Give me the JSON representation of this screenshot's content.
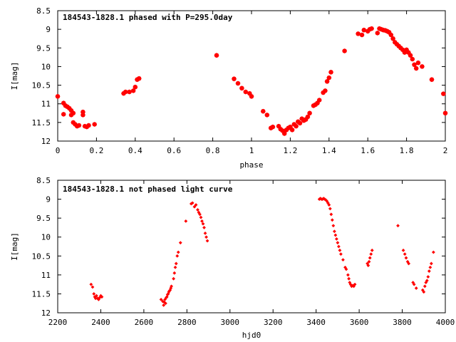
{
  "marker_color": "#ff0000",
  "chart_data": [
    {
      "type": "scatter",
      "title": "184543-1828.1 phased with P=295.0day",
      "xlabel": "phase",
      "ylabel": "I[mag]",
      "xlim": [
        0,
        2
      ],
      "ylim": [
        12,
        8.5
      ],
      "y_inverted": true,
      "xticks": [
        0,
        0.2,
        0.4,
        0.6,
        0.8,
        1,
        1.2,
        1.4,
        1.6,
        1.8,
        2
      ],
      "xtick_labels": [
        "0",
        "0.2",
        "0.4",
        "0.6",
        "0.8",
        "1",
        "1.2",
        "1.4",
        "1.6",
        "1.8",
        "2"
      ],
      "yticks": [
        8.5,
        9,
        9.5,
        10,
        10.5,
        11,
        11.5,
        12
      ],
      "ytick_labels": [
        "8.5",
        "9",
        "9.5",
        "10",
        "10.5",
        "11",
        "11.5",
        "12"
      ],
      "grid": false,
      "legend": "none",
      "points": [
        [
          0.0,
          10.8
        ],
        [
          0.03,
          10.98
        ],
        [
          0.04,
          11.05
        ],
        [
          0.05,
          11.08
        ],
        [
          0.06,
          11.12
        ],
        [
          0.07,
          11.18
        ],
        [
          0.08,
          11.25
        ],
        [
          0.03,
          11.28
        ],
        [
          0.07,
          11.3
        ],
        [
          0.08,
          11.5
        ],
        [
          0.09,
          11.55
        ],
        [
          0.1,
          11.6
        ],
        [
          0.11,
          11.58
        ],
        [
          0.13,
          11.22
        ],
        [
          0.13,
          11.3
        ],
        [
          0.14,
          11.6
        ],
        [
          0.15,
          11.62
        ],
        [
          0.16,
          11.58
        ],
        [
          0.19,
          11.55
        ],
        [
          0.34,
          10.72
        ],
        [
          0.35,
          10.68
        ],
        [
          0.37,
          10.68
        ],
        [
          0.39,
          10.65
        ],
        [
          0.4,
          10.55
        ],
        [
          0.41,
          10.35
        ],
        [
          0.42,
          10.32
        ],
        [
          0.82,
          9.7
        ],
        [
          0.91,
          10.33
        ],
        [
          0.93,
          10.45
        ],
        [
          0.95,
          10.58
        ],
        [
          0.97,
          10.68
        ],
        [
          0.99,
          10.72
        ],
        [
          1.0,
          10.8
        ],
        [
          1.06,
          11.2
        ],
        [
          1.08,
          11.3
        ],
        [
          1.1,
          11.65
        ],
        [
          1.11,
          11.62
        ],
        [
          1.14,
          11.6
        ],
        [
          1.15,
          11.68
        ],
        [
          1.16,
          11.72
        ],
        [
          1.17,
          11.75
        ],
        [
          1.17,
          11.8
        ],
        [
          1.18,
          11.7
        ],
        [
          1.19,
          11.65
        ],
        [
          1.2,
          11.62
        ],
        [
          1.21,
          11.7
        ],
        [
          1.22,
          11.55
        ],
        [
          1.23,
          11.6
        ],
        [
          1.24,
          11.48
        ],
        [
          1.25,
          11.52
        ],
        [
          1.26,
          11.4
        ],
        [
          1.27,
          11.45
        ],
        [
          1.28,
          11.42
        ],
        [
          1.29,
          11.35
        ],
        [
          1.3,
          11.25
        ],
        [
          1.32,
          11.05
        ],
        [
          1.33,
          11.02
        ],
        [
          1.34,
          10.98
        ],
        [
          1.35,
          10.9
        ],
        [
          1.37,
          10.7
        ],
        [
          1.38,
          10.65
        ],
        [
          1.39,
          10.4
        ],
        [
          1.4,
          10.3
        ],
        [
          1.41,
          10.15
        ],
        [
          1.48,
          9.58
        ],
        [
          1.55,
          9.12
        ],
        [
          1.57,
          9.15
        ],
        [
          1.58,
          9.02
        ],
        [
          1.6,
          9.05
        ],
        [
          1.61,
          9.0
        ],
        [
          1.62,
          8.98
        ],
        [
          1.65,
          9.1
        ],
        [
          1.66,
          8.98
        ],
        [
          1.67,
          9.0
        ],
        [
          1.68,
          9.02
        ],
        [
          1.69,
          9.03
        ],
        [
          1.7,
          9.05
        ],
        [
          1.71,
          9.08
        ],
        [
          1.72,
          9.15
        ],
        [
          1.73,
          9.25
        ],
        [
          1.74,
          9.35
        ],
        [
          1.75,
          9.4
        ],
        [
          1.76,
          9.45
        ],
        [
          1.77,
          9.5
        ],
        [
          1.78,
          9.55
        ],
        [
          1.79,
          9.62
        ],
        [
          1.8,
          9.55
        ],
        [
          1.81,
          9.62
        ],
        [
          1.82,
          9.7
        ],
        [
          1.83,
          9.8
        ],
        [
          1.84,
          9.95
        ],
        [
          1.85,
          10.05
        ],
        [
          1.86,
          9.9
        ],
        [
          1.88,
          10.0
        ],
        [
          1.93,
          10.35
        ],
        [
          1.99,
          10.73
        ],
        [
          2.0,
          11.25
        ]
      ]
    },
    {
      "type": "scatter",
      "title": "184543-1828.1 not phased light curve",
      "xlabel": "hjd0",
      "ylabel": "I[mag]",
      "xlim": [
        2200,
        4000
      ],
      "ylim": [
        12,
        8.5
      ],
      "y_inverted": true,
      "xticks": [
        2200,
        2400,
        2600,
        2800,
        3000,
        3200,
        3400,
        3600,
        3800,
        4000
      ],
      "xtick_labels": [
        "2200",
        "2400",
        "2600",
        "2800",
        "3000",
        "3200",
        "3400",
        "3600",
        "3800",
        "4000"
      ],
      "yticks": [
        8.5,
        9,
        9.5,
        10,
        10.5,
        11,
        11.5,
        12
      ],
      "ytick_labels": [
        "8.5",
        "9",
        "9.5",
        "10",
        "10.5",
        "11",
        "11.5",
        "12"
      ],
      "grid": false,
      "legend": "none",
      "points": [
        [
          2355,
          11.25
        ],
        [
          2362,
          11.32
        ],
        [
          2368,
          11.5
        ],
        [
          2372,
          11.58
        ],
        [
          2376,
          11.62
        ],
        [
          2380,
          11.55
        ],
        [
          2385,
          11.62
        ],
        [
          2390,
          11.65
        ],
        [
          2395,
          11.6
        ],
        [
          2400,
          11.55
        ],
        [
          2405,
          11.58
        ],
        [
          2680,
          11.65
        ],
        [
          2688,
          11.7
        ],
        [
          2692,
          11.8
        ],
        [
          2695,
          11.72
        ],
        [
          2698,
          11.65
        ],
        [
          2701,
          11.75
        ],
        [
          2704,
          11.6
        ],
        [
          2707,
          11.58
        ],
        [
          2710,
          11.52
        ],
        [
          2713,
          11.5
        ],
        [
          2716,
          11.45
        ],
        [
          2719,
          11.42
        ],
        [
          2722,
          11.4
        ],
        [
          2725,
          11.35
        ],
        [
          2728,
          11.3
        ],
        [
          2738,
          11.1
        ],
        [
          2742,
          10.95
        ],
        [
          2746,
          10.8
        ],
        [
          2750,
          10.7
        ],
        [
          2755,
          10.5
        ],
        [
          2760,
          10.4
        ],
        [
          2770,
          10.15
        ],
        [
          2795,
          9.58
        ],
        [
          2820,
          9.12
        ],
        [
          2826,
          9.1
        ],
        [
          2835,
          9.2
        ],
        [
          2842,
          9.15
        ],
        [
          2850,
          9.28
        ],
        [
          2855,
          9.35
        ],
        [
          2860,
          9.4
        ],
        [
          2865,
          9.48
        ],
        [
          2870,
          9.58
        ],
        [
          2875,
          9.65
        ],
        [
          2880,
          9.75
        ],
        [
          2885,
          9.9
        ],
        [
          2890,
          10.0
        ],
        [
          2895,
          10.1
        ],
        [
          3415,
          9.0
        ],
        [
          3420,
          8.98
        ],
        [
          3425,
          9.0
        ],
        [
          3430,
          9.0
        ],
        [
          3435,
          8.98
        ],
        [
          3440,
          9.0
        ],
        [
          3445,
          9.02
        ],
        [
          3450,
          9.05
        ],
        [
          3455,
          9.1
        ],
        [
          3460,
          9.15
        ],
        [
          3465,
          9.25
        ],
        [
          3470,
          9.4
        ],
        [
          3475,
          9.55
        ],
        [
          3480,
          9.7
        ],
        [
          3485,
          9.85
        ],
        [
          3490,
          9.95
        ],
        [
          3495,
          10.05
        ],
        [
          3500,
          10.15
        ],
        [
          3505,
          10.25
        ],
        [
          3510,
          10.35
        ],
        [
          3515,
          10.45
        ],
        [
          3525,
          10.6
        ],
        [
          3535,
          10.8
        ],
        [
          3540,
          10.85
        ],
        [
          3548,
          11.0
        ],
        [
          3552,
          11.1
        ],
        [
          3556,
          11.2
        ],
        [
          3560,
          11.25
        ],
        [
          3565,
          11.3
        ],
        [
          3570,
          11.28
        ],
        [
          3575,
          11.3
        ],
        [
          3580,
          11.25
        ],
        [
          3638,
          10.7
        ],
        [
          3642,
          10.75
        ],
        [
          3646,
          10.65
        ],
        [
          3650,
          10.55
        ],
        [
          3655,
          10.45
        ],
        [
          3660,
          10.35
        ],
        [
          3780,
          9.7
        ],
        [
          3805,
          10.35
        ],
        [
          3812,
          10.45
        ],
        [
          3818,
          10.55
        ],
        [
          3825,
          10.65
        ],
        [
          3830,
          10.7
        ],
        [
          3850,
          11.2
        ],
        [
          3855,
          11.25
        ],
        [
          3865,
          11.35
        ],
        [
          3895,
          11.4
        ],
        [
          3900,
          11.45
        ],
        [
          3905,
          11.3
        ],
        [
          3910,
          11.2
        ],
        [
          3915,
          11.15
        ],
        [
          3920,
          11.05
        ],
        [
          3925,
          10.9
        ],
        [
          3930,
          10.8
        ],
        [
          3935,
          10.7
        ],
        [
          3945,
          10.4
        ]
      ]
    }
  ]
}
